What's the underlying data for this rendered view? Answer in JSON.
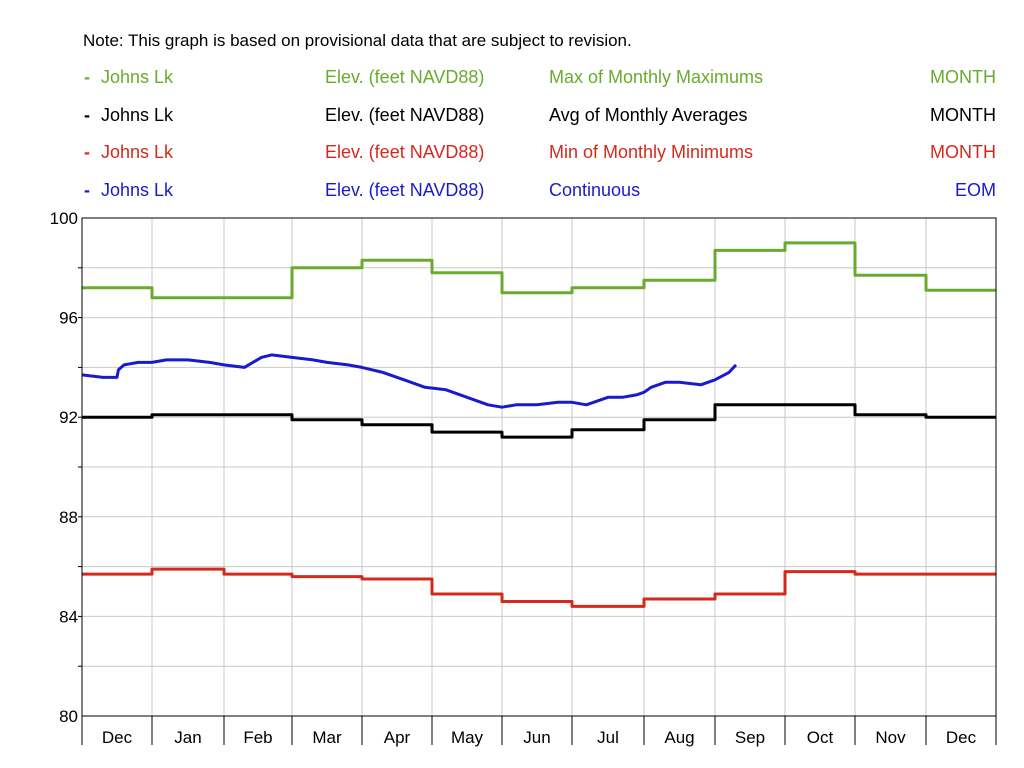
{
  "note": "Note: This graph is based on provisional data that are subject to revision.",
  "legend": [
    {
      "dash": "-",
      "site": "Johns Lk",
      "parameter": "Elev. (feet NAVD88)",
      "statistic": "Max of Monthly Maximums",
      "period": "MONTH",
      "color": "#6aab2e"
    },
    {
      "dash": "-",
      "site": "Johns Lk",
      "parameter": "Elev. (feet NAVD88)",
      "statistic": "Avg of Monthly Averages",
      "period": "MONTH",
      "color": "#000000"
    },
    {
      "dash": "-",
      "site": "Johns Lk",
      "parameter": "Elev. (feet NAVD88)",
      "statistic": "Min of Monthly Minimums",
      "period": "MONTH",
      "color": "#d42a1e"
    },
    {
      "dash": "-",
      "site": "Johns Lk",
      "parameter": "Elev. (feet NAVD88)",
      "statistic": "Continuous",
      "period": "EOM",
      "color": "#1a1acc"
    }
  ],
  "chart_data": {
    "type": "line",
    "xlabel": "",
    "ylabel": "",
    "ylim": [
      80,
      100
    ],
    "yticks": [
      "100",
      "96",
      "92",
      "88",
      "84",
      "80"
    ],
    "grid": true,
    "legend_position": "top",
    "months": [
      "Dec",
      "Jan",
      "Feb",
      "Mar",
      "Apr",
      "May",
      "Jun",
      "Jul",
      "Aug",
      "Sep",
      "Oct",
      "Nov",
      "Dec"
    ],
    "series": [
      {
        "name": "Max of Monthly Maximums",
        "color": "#6aab2e",
        "style": "step",
        "values": [
          97.2,
          96.8,
          96.8,
          98.0,
          98.3,
          97.8,
          97.0,
          97.2,
          97.5,
          98.7,
          99.0,
          97.7,
          97.1
        ]
      },
      {
        "name": "Avg of Monthly Averages",
        "color": "#000000",
        "style": "step",
        "values": [
          92.0,
          92.1,
          92.1,
          91.9,
          91.7,
          91.4,
          91.2,
          91.5,
          91.9,
          92.5,
          92.5,
          92.1,
          92.0
        ]
      },
      {
        "name": "Min of Monthly Minimums",
        "color": "#d42a1e",
        "style": "step",
        "values": [
          85.7,
          85.9,
          85.7,
          85.6,
          85.5,
          84.9,
          84.6,
          84.4,
          84.7,
          84.9,
          85.8,
          85.7,
          85.7
        ]
      },
      {
        "name": "Continuous",
        "color": "#1a1acc",
        "style": "line",
        "x": [
          0.0,
          0.3,
          0.5,
          0.52,
          0.6,
          0.8,
          1.0,
          1.2,
          1.5,
          1.8,
          2.0,
          2.3,
          2.55,
          2.7,
          3.0,
          3.3,
          3.5,
          3.8,
          4.0,
          4.3,
          4.6,
          4.9,
          5.2,
          5.5,
          5.8,
          6.0,
          6.2,
          6.5,
          6.8,
          7.0,
          7.2,
          7.5,
          7.7,
          7.9,
          8.0,
          8.1,
          8.3,
          8.5,
          8.8,
          9.0,
          9.2,
          9.3
        ],
        "values": [
          93.7,
          93.6,
          93.6,
          93.9,
          94.1,
          94.2,
          94.2,
          94.3,
          94.3,
          94.2,
          94.1,
          94.0,
          94.4,
          94.5,
          94.4,
          94.3,
          94.2,
          94.1,
          94.0,
          93.8,
          93.5,
          93.2,
          93.1,
          92.8,
          92.5,
          92.4,
          92.5,
          92.5,
          92.6,
          92.6,
          92.5,
          92.8,
          92.8,
          92.9,
          93.0,
          93.2,
          93.4,
          93.4,
          93.3,
          93.5,
          93.8,
          94.1
        ]
      }
    ]
  }
}
